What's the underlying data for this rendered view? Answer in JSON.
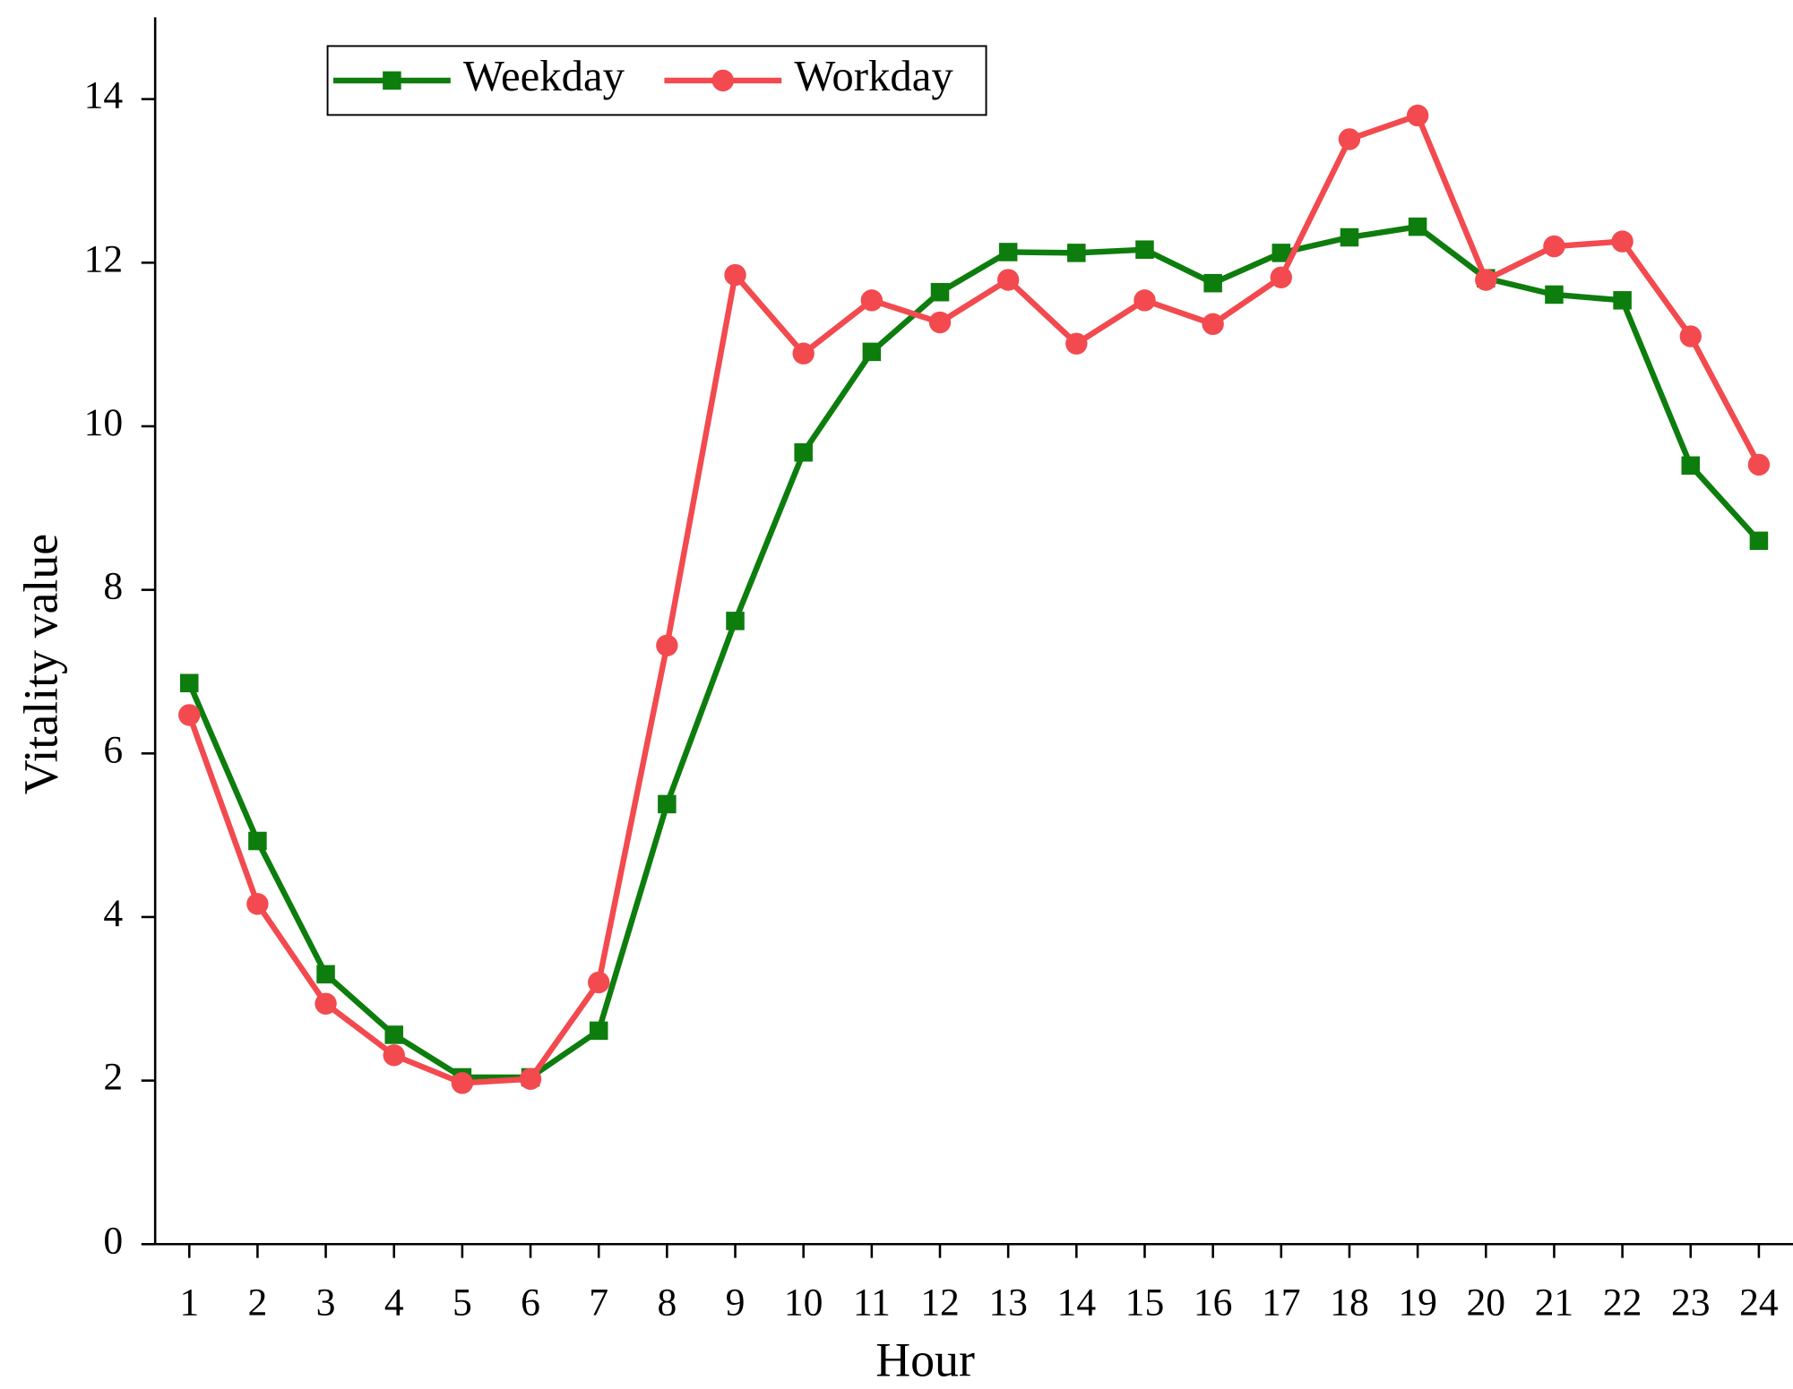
{
  "chart_data": {
    "type": "line",
    "x_label": "Hour",
    "y_label": "Vitality value",
    "x": [
      1,
      2,
      3,
      4,
      5,
      6,
      7,
      8,
      9,
      10,
      11,
      12,
      13,
      14,
      15,
      16,
      17,
      18,
      19,
      20,
      21,
      22,
      23,
      24
    ],
    "xlim": [
      0.5,
      24.5
    ],
    "xticks": [
      1,
      2,
      3,
      4,
      5,
      6,
      7,
      8,
      9,
      10,
      11,
      12,
      13,
      14,
      15,
      16,
      17,
      18,
      19,
      20,
      21,
      22,
      23,
      24
    ],
    "ylim": [
      0,
      15
    ],
    "yticks": [
      0,
      2,
      4,
      6,
      8,
      10,
      12,
      14
    ],
    "grid": false,
    "legend": "top-left",
    "series": [
      {
        "name": "Weekday",
        "color": "#0d7d0d",
        "marker": "square",
        "values": [
          6.86,
          4.93,
          3.3,
          2.56,
          2.04,
          2.04,
          2.61,
          5.38,
          7.62,
          9.68,
          10.91,
          11.64,
          12.13,
          12.12,
          12.16,
          11.75,
          12.12,
          12.31,
          12.44,
          11.81,
          11.61,
          11.54,
          9.52,
          8.6
        ]
      },
      {
        "name": "Workday",
        "color": "#f24a4f",
        "marker": "circle",
        "values": [
          6.47,
          4.16,
          2.94,
          2.31,
          1.97,
          2.02,
          3.2,
          7.32,
          11.85,
          10.89,
          11.54,
          11.27,
          11.79,
          11.01,
          11.54,
          11.25,
          11.82,
          13.51,
          13.8,
          11.79,
          12.2,
          12.26,
          11.1,
          9.53
        ]
      }
    ]
  }
}
